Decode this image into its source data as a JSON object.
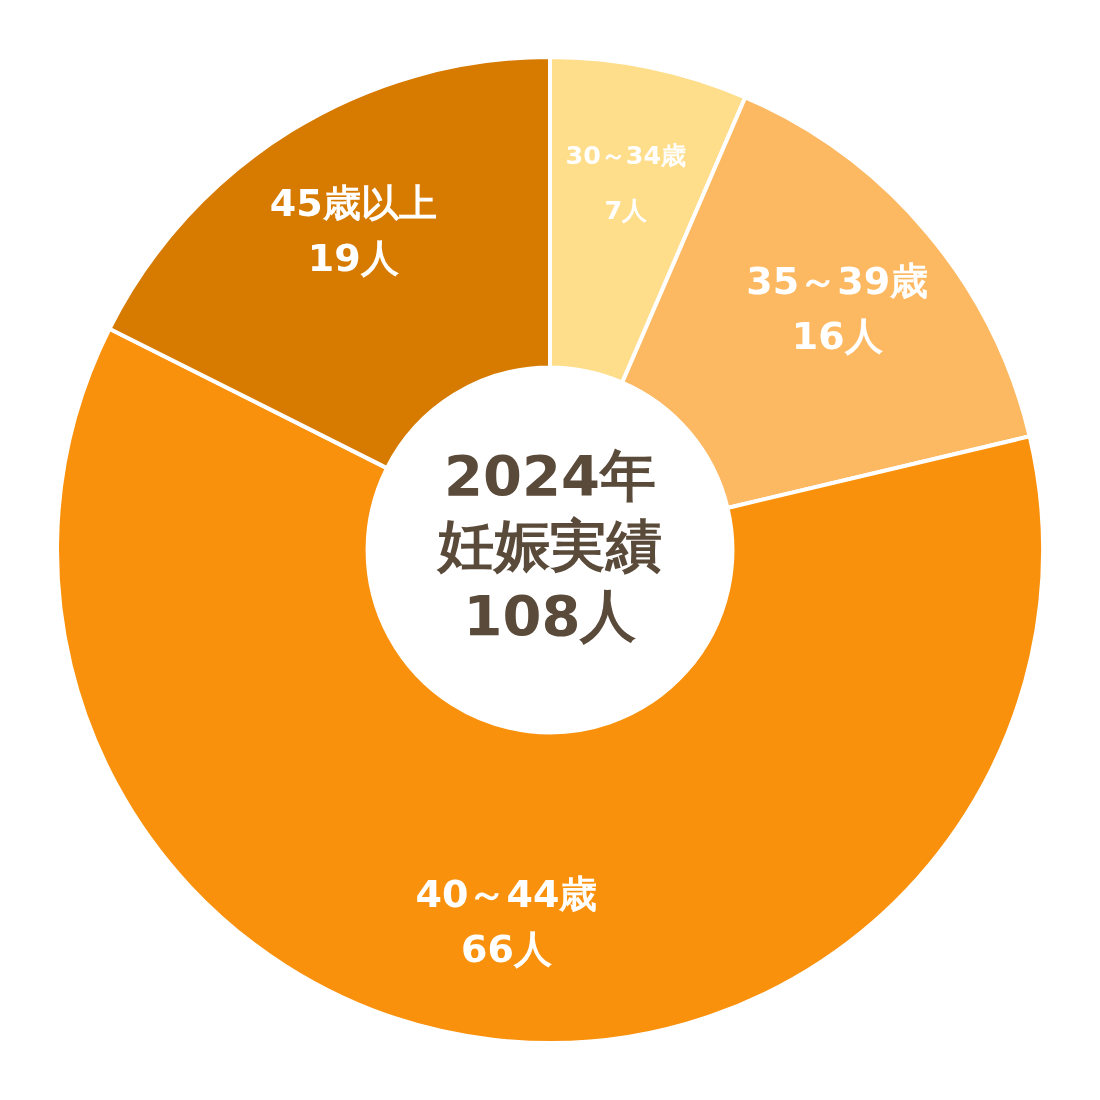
{
  "chart_data": {
    "type": "donut",
    "categories": [
      "30～34歳",
      "35～39歳",
      "40～44歳",
      "45歳以上"
    ],
    "values": [
      7,
      16,
      66,
      19
    ],
    "value_labels": [
      "7人",
      "16人",
      "66人",
      "19人"
    ],
    "colors": [
      "#fedd8b",
      "#fdb862",
      "#f9910c",
      "#d67a00"
    ],
    "annotations": [
      "2024年",
      "妊娠実績",
      "108人"
    ],
    "legend": false
  }
}
